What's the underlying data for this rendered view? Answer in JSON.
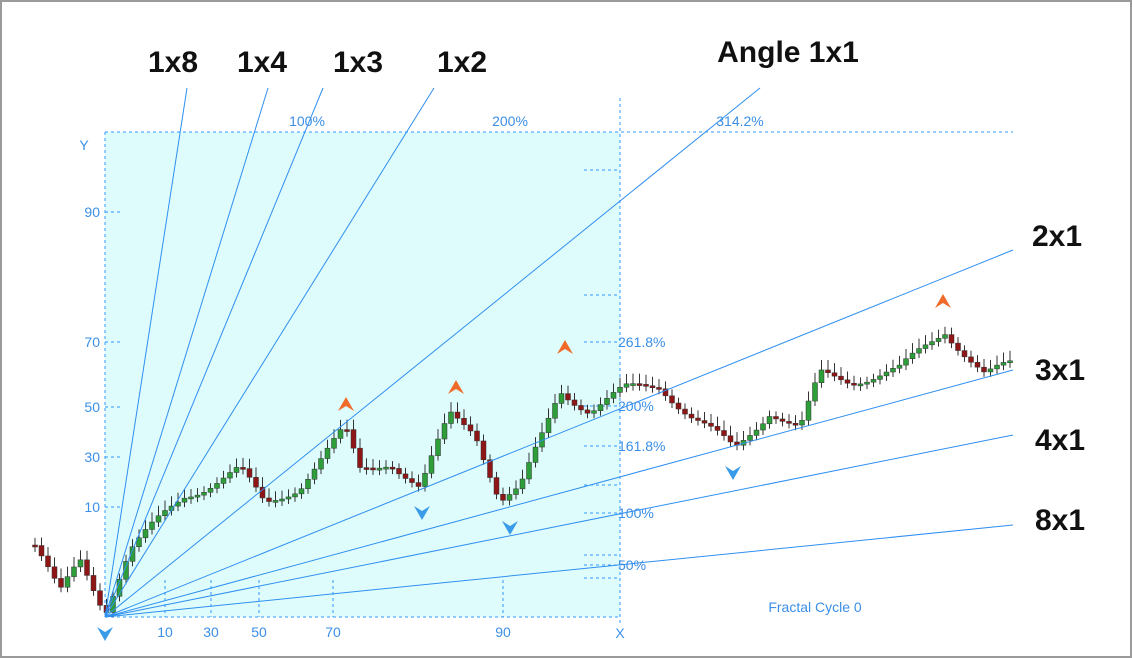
{
  "fan_labels": [
    "1x8",
    "1x4",
    "1x3",
    "1x2",
    "Angle 1x1",
    "2x1",
    "3x1",
    "4x1",
    "8x1"
  ],
  "y_axis": {
    "label": "Y",
    "ticks": [
      90,
      70,
      50,
      30,
      10
    ]
  },
  "x_axis": {
    "label": "X",
    "ticks": [
      10,
      30,
      50,
      70,
      90
    ]
  },
  "top_levels": [
    "100%",
    "200%",
    "314.2%"
  ],
  "side_levels": [
    "261.8%",
    "200%",
    "161.8%",
    "100%",
    "50%"
  ],
  "caption": "Fractal Cycle 0"
}
